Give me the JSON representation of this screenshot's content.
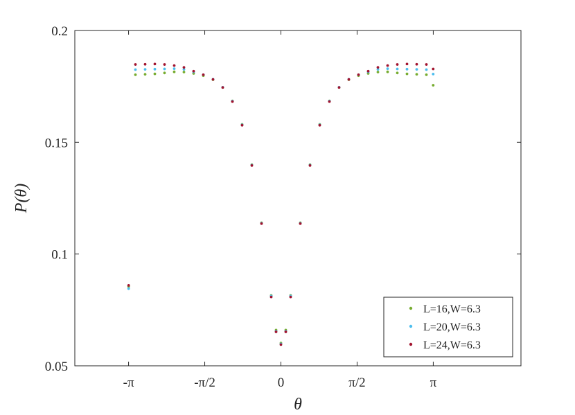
{
  "chart_data": {
    "type": "scatter",
    "title": "",
    "xlabel": "θ",
    "ylabel": "P(θ)",
    "xlim": [
      -4.25,
      4.95
    ],
    "ylim": [
      0.05,
      0.2
    ],
    "grid": false,
    "legend_position": "bottom-right",
    "x_ticks": [
      {
        "value": -3.14159,
        "label": "-π"
      },
      {
        "value": -1.5708,
        "label": "-π/2"
      },
      {
        "value": 0,
        "label": "0"
      },
      {
        "value": 1.5708,
        "label": "π/2"
      },
      {
        "value": 3.14159,
        "label": "π"
      }
    ],
    "y_ticks": [
      {
        "value": 0.05,
        "label": "0.05"
      },
      {
        "value": 0.1,
        "label": "0.1"
      },
      {
        "value": 0.15,
        "label": "0.15"
      },
      {
        "value": 0.2,
        "label": "0.2"
      }
    ],
    "series": [
      {
        "name": "L=16,W=6.3",
        "color": "#77ac30",
        "x": [
          -3.14,
          -3.0,
          -2.8,
          -2.6,
          -2.4,
          -2.2,
          -2.0,
          -1.8,
          -1.6,
          -1.4,
          -1.2,
          -1.0,
          -0.8,
          -0.6,
          -0.4,
          -0.2,
          -0.1,
          0,
          0.1,
          0.2,
          0.4,
          0.6,
          0.8,
          1.0,
          1.2,
          1.4,
          1.6,
          1.8,
          2.0,
          2.2,
          2.4,
          2.6,
          2.8,
          3.0,
          3.14
        ],
        "y": [
          0.0855,
          0.1802,
          0.1804,
          0.1806,
          0.181,
          0.1815,
          0.1814,
          0.1808,
          0.1798,
          0.178,
          0.1745,
          0.1685,
          0.158,
          0.14,
          0.114,
          0.0815,
          0.066,
          0.0602,
          0.066,
          0.0815,
          0.114,
          0.14,
          0.158,
          0.1685,
          0.1745,
          0.178,
          0.1798,
          0.1808,
          0.1814,
          0.1815,
          0.181,
          0.1806,
          0.1804,
          0.1802,
          0.1755
        ]
      },
      {
        "name": "L=20,W=6.3",
        "color": "#4dbeee",
        "x": [
          -3.14,
          -3.0,
          -2.8,
          -2.6,
          -2.4,
          -2.2,
          -2.0,
          -1.8,
          -1.6,
          -1.4,
          -1.2,
          -1.0,
          -0.8,
          -0.6,
          -0.4,
          -0.2,
          -0.1,
          0,
          0.1,
          0.2,
          0.4,
          0.6,
          0.8,
          1.0,
          1.2,
          1.4,
          1.6,
          1.8,
          2.0,
          2.2,
          2.4,
          2.6,
          2.8,
          3.0,
          3.14
        ],
        "y": [
          0.0845,
          0.1825,
          0.1826,
          0.1827,
          0.1828,
          0.1829,
          0.1826,
          0.1815,
          0.1802,
          0.1782,
          0.1746,
          0.1684,
          0.1578,
          0.1398,
          0.1138,
          0.0812,
          0.0655,
          0.0598,
          0.0655,
          0.0812,
          0.1138,
          0.1398,
          0.1578,
          0.1684,
          0.1746,
          0.1782,
          0.1802,
          0.1815,
          0.1826,
          0.1829,
          0.1828,
          0.1827,
          0.1826,
          0.1825,
          0.1805
        ]
      },
      {
        "name": "L=24,W=6.3",
        "color": "#a2142f",
        "x": [
          -3.14,
          -3.0,
          -2.8,
          -2.6,
          -2.4,
          -2.2,
          -2.0,
          -1.8,
          -1.6,
          -1.4,
          -1.2,
          -1.0,
          -0.8,
          -0.6,
          -0.4,
          -0.2,
          -0.1,
          0,
          0.1,
          0.2,
          0.4,
          0.6,
          0.8,
          1.0,
          1.2,
          1.4,
          1.6,
          1.8,
          2.0,
          2.2,
          2.4,
          2.6,
          2.8,
          3.0,
          3.14
        ],
        "y": [
          0.086,
          0.1848,
          0.1849,
          0.185,
          0.1848,
          0.1843,
          0.1835,
          0.1818,
          0.1802,
          0.1781,
          0.1745,
          0.1682,
          0.1576,
          0.1396,
          0.1136,
          0.0808,
          0.0652,
          0.0595,
          0.0652,
          0.0808,
          0.1136,
          0.1396,
          0.1576,
          0.1682,
          0.1745,
          0.1781,
          0.1802,
          0.1818,
          0.1835,
          0.1843,
          0.1848,
          0.185,
          0.1849,
          0.1848,
          0.1828
        ]
      }
    ]
  }
}
